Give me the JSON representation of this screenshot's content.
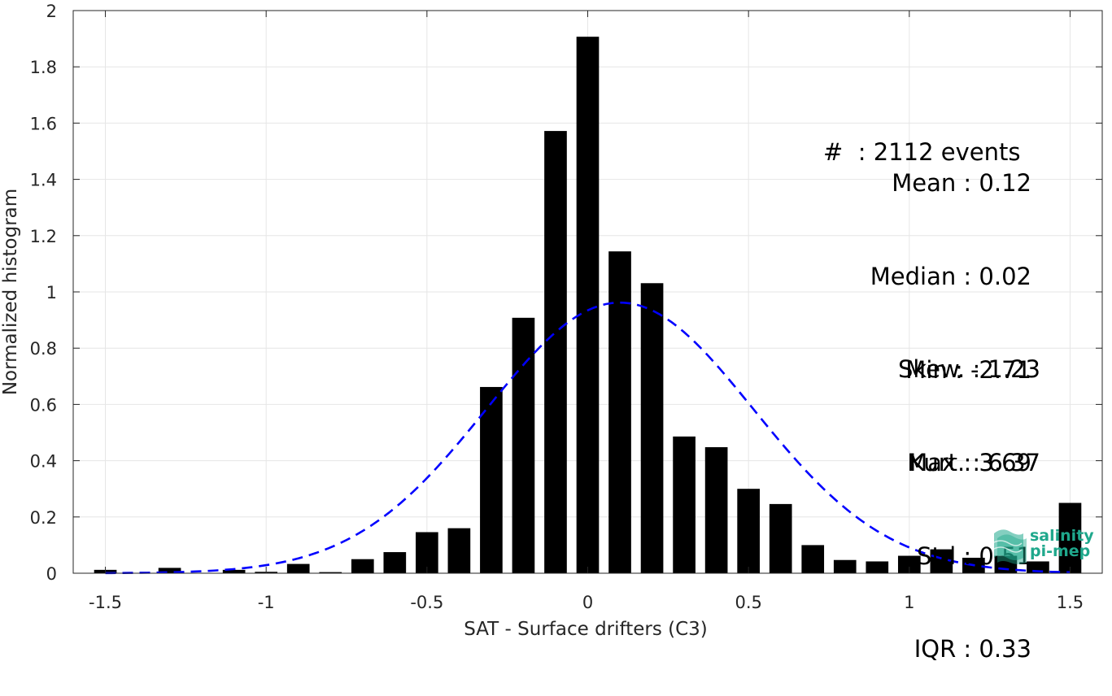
{
  "chart_data": {
    "type": "bar",
    "xlabel": "SAT - Surface drifters (C3)",
    "ylabel": "Normalized histogram",
    "xlim": [
      -1.6,
      1.6
    ],
    "ylim": [
      0,
      2
    ],
    "grid": true,
    "bar_width": 0.07,
    "bar_color": "#000000",
    "x": [
      -1.5,
      -1.4,
      -1.3,
      -1.2,
      -1.1,
      -1.0,
      -0.9,
      -0.8,
      -0.7,
      -0.6,
      -0.5,
      -0.4,
      -0.3,
      -0.2,
      -0.1,
      0.0,
      0.1,
      0.2,
      0.3,
      0.4,
      0.5,
      0.6,
      0.7,
      0.8,
      0.9,
      1.0,
      1.1,
      1.2,
      1.3,
      1.4,
      1.5
    ],
    "values": [
      0.012,
      0.0,
      0.019,
      0.0,
      0.012,
      0.005,
      0.033,
      0.004,
      0.05,
      0.075,
      0.146,
      0.16,
      0.662,
      0.908,
      1.572,
      1.907,
      1.144,
      1.031,
      0.486,
      0.448,
      0.3,
      0.246,
      0.1,
      0.047,
      0.042,
      0.062,
      0.085,
      0.055,
      0.062,
      0.042,
      0.25
    ],
    "fit": {
      "name": "normal fit",
      "color": "#0000ff",
      "style": "dashed",
      "mean": 0.1,
      "std": 0.415,
      "peak": 0.962
    },
    "x_ticks": [
      {
        "value": -1.5,
        "label": "-1.5"
      },
      {
        "value": -1,
        "label": "-1"
      },
      {
        "value": -0.5,
        "label": "-0.5"
      },
      {
        "value": 0,
        "label": "0"
      },
      {
        "value": 0.5,
        "label": "0.5"
      },
      {
        "value": 1,
        "label": "1"
      },
      {
        "value": 1.5,
        "label": "1.5"
      }
    ],
    "y_ticks": [
      {
        "value": 0,
        "label": "0"
      },
      {
        "value": 0.2,
        "label": "0.2"
      },
      {
        "value": 0.4,
        "label": "0.4"
      },
      {
        "value": 0.6,
        "label": "0.6"
      },
      {
        "value": 0.8,
        "label": "0.8"
      },
      {
        "value": 1.0,
        "label": "1"
      },
      {
        "value": 1.2,
        "label": "1.2"
      },
      {
        "value": 1.4,
        "label": "1.4"
      },
      {
        "value": 1.6,
        "label": "1.6"
      },
      {
        "value": 1.8,
        "label": "1.8"
      },
      {
        "value": 2.0,
        "label": "2"
      }
    ],
    "annotations": [
      "#  : 2112 events",
      "Mean : 0.12",
      "Median : 0.02",
      "Min : -2.71",
      "Max : 3.69",
      "Std : 0.51",
      "IQR : 0.33",
      "Skew. : 1.23",
      "Kurt. : 6.37"
    ]
  },
  "logo": {
    "line1": "salinity",
    "line2": "pi-mep",
    "color": "#1fa88c",
    "icon": "salinity-wave-icon"
  }
}
